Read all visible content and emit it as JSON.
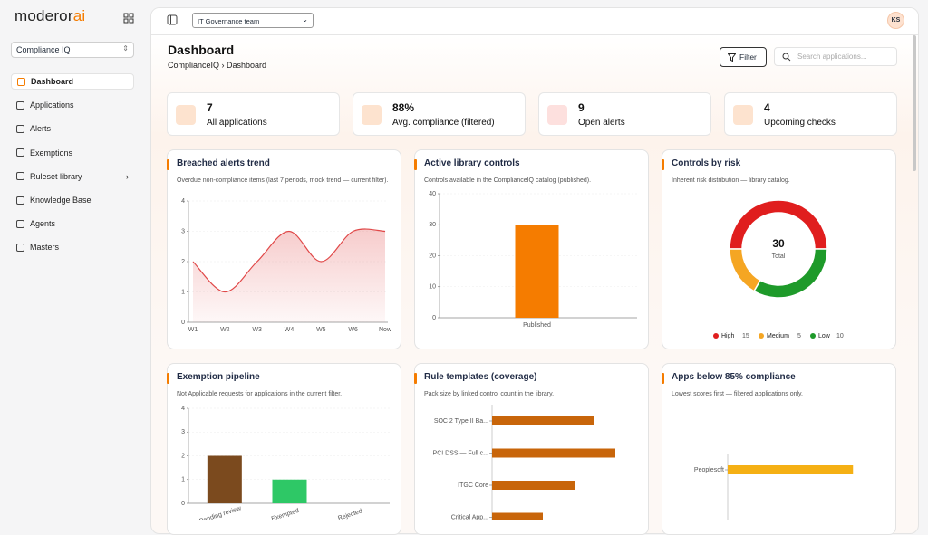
{
  "sidebar": {
    "logo": {
      "text": "moderor",
      "accent": "ai"
    },
    "workspace": "Compliance IQ",
    "nav": [
      "Dashboard",
      "Applications",
      "Alerts",
      "Exemptions",
      "Ruleset library",
      "Knowledge Base",
      "Agents",
      "Masters"
    ]
  },
  "topbar": {
    "team": "IT Governance team",
    "avatar": "KS"
  },
  "header": {
    "title": "Dashboard",
    "breadcrumb": [
      "ComplianceIQ",
      "Dashboard"
    ],
    "filter": "Filter",
    "search_placeholder": "Search applications..."
  },
  "kpis": [
    {
      "value": "7",
      "label": "All applications"
    },
    {
      "value": "88%",
      "label": "Avg. compliance (filtered)"
    },
    {
      "value": "9",
      "label": "Open alerts"
    },
    {
      "value": "4",
      "label": "Upcoming checks"
    }
  ],
  "chart_data": [
    {
      "type": "area",
      "title": "Breached alerts trend",
      "subtitle": "Overdue non-compliance items (last 7 periods, mock trend — current filter).",
      "categories": [
        "W1",
        "W2",
        "W3",
        "W4",
        "W5",
        "W6",
        "Now"
      ],
      "values": [
        2,
        1,
        2,
        3,
        2,
        3,
        3
      ],
      "color": "#e04848",
      "ylim": [
        0,
        4
      ],
      "yticks": [
        0,
        1,
        2,
        3,
        4
      ],
      "grid": true
    },
    {
      "type": "bar",
      "title": "Active library controls",
      "subtitle": "Controls available in the ComplianceIQ catalog (published).",
      "categories": [
        "Published"
      ],
      "values": [
        30
      ],
      "colors": [
        "#f57c00"
      ],
      "ylim": [
        0,
        40
      ],
      "yticks": [
        0,
        10,
        20,
        30,
        40
      ],
      "grid": true
    },
    {
      "type": "donut",
      "title": "Controls by risk",
      "subtitle": "Inherent risk distribution — library catalog.",
      "total": 30,
      "total_label": "Total",
      "categories": [
        "High",
        "Medium",
        "Low"
      ],
      "values": [
        15,
        5,
        10
      ],
      "colors": [
        "#e01e1e",
        "#f5a623",
        "#1e9a2a"
      ]
    },
    {
      "type": "bar",
      "title": "Exemption pipeline",
      "subtitle": "Not Applicable requests for applications in the current filter.",
      "categories": [
        "Pending review",
        "Exempted",
        "Rejected"
      ],
      "values": [
        2,
        1,
        0
      ],
      "colors": [
        "#7b4a1e",
        "#2ec866",
        "#999999"
      ],
      "ylim": [
        0,
        4
      ],
      "yticks": [
        0,
        1,
        2,
        3,
        4
      ],
      "grid": true,
      "rotate_labels": true
    },
    {
      "type": "hbar",
      "title": "Rule templates (coverage)",
      "subtitle": "Pack size by linked control count in the library.",
      "categories": [
        "SOC 2 Type II Ba...",
        "PCI DSS — Full c...",
        "ITGC Core",
        "Critical App..."
      ],
      "values": [
        28,
        34,
        23,
        14
      ],
      "color": "#c8650a",
      "xlim": [
        0,
        40
      ]
    },
    {
      "type": "hbar",
      "title": "Apps below 85% compliance",
      "subtitle": "Lowest scores first — filtered applications only.",
      "categories": [
        "Peoplesoft"
      ],
      "values": [
        79
      ],
      "color": "#f5b014",
      "xlim": [
        0,
        100
      ]
    }
  ]
}
